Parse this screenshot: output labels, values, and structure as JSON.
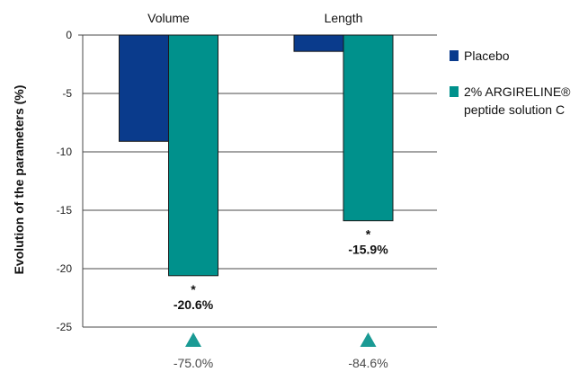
{
  "chart_data": {
    "type": "bar",
    "categories": [
      "Volume",
      "Length"
    ],
    "series": [
      {
        "name": "Placebo",
        "values": [
          -9.1,
          -1.4
        ],
        "color": "#0a3b8c"
      },
      {
        "name": "2% ARGIRELINE® peptide solution C",
        "values": [
          -20.6,
          -15.9
        ],
        "color": "#00918c"
      }
    ],
    "ylabel": "Evolution of the parameters (%)",
    "xlabel": "",
    "ylim": [
      -25,
      0
    ],
    "yticks": [
      0,
      -5,
      -10,
      -15,
      -20,
      -25
    ],
    "grid": true,
    "legend": "right",
    "data_labels": [
      "-20.6%",
      "-15.9%"
    ],
    "significance_marks": [
      "*",
      "*"
    ],
    "deltas": [
      "-75.0%",
      "-84.6%"
    ],
    "delta_color": "#1a9a94"
  },
  "legend": {
    "items": [
      {
        "lines": [
          "Placebo"
        ]
      },
      {
        "lines": [
          "2% ARGIRELINE®",
          "peptide solution C"
        ]
      }
    ]
  }
}
